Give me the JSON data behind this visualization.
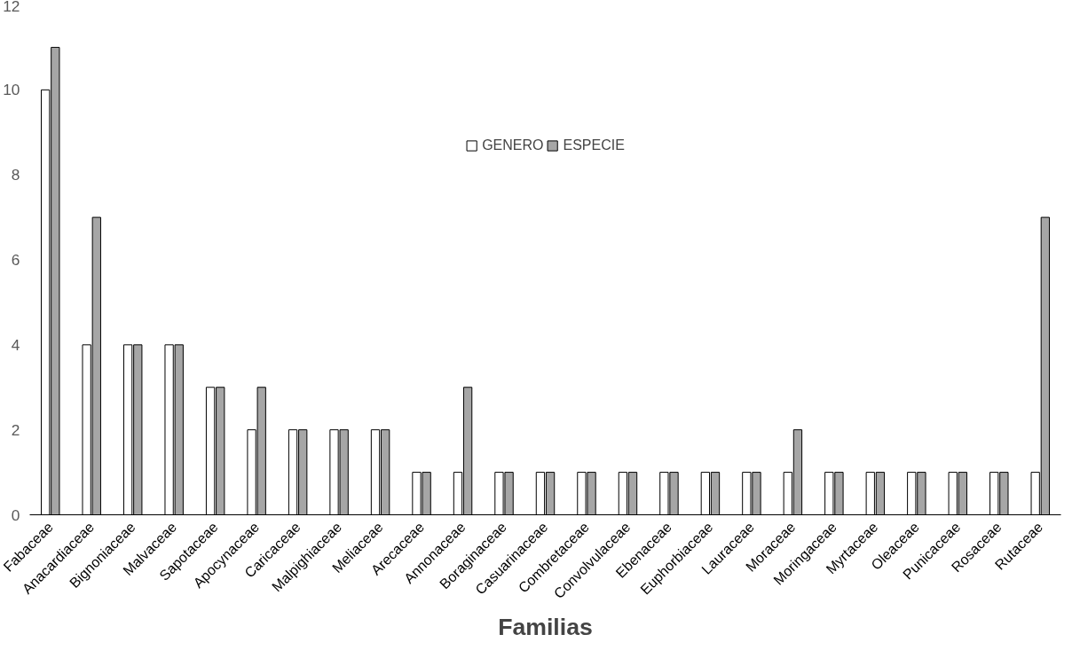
{
  "chart_data": {
    "type": "bar",
    "xlabel": "Familias",
    "categories": [
      "Fabaceae",
      "Anacardiaceae",
      "Bignoniaceae",
      "Malvaceae",
      "Sapotaceae",
      "Apocynaceae",
      "Caricaceae",
      "Malpighiaceae",
      "Meliaceae",
      "Arecaceae",
      "Annonaceae",
      "Boraginaceae",
      "Casuarinaceae",
      "Combretaceae",
      "Convolvulaceae",
      "Ebenaceae",
      "Euphorbiaceae",
      "Lauraceae",
      "Moraceae",
      "Moringaceae",
      "Myrtaceae",
      "Oleaceae",
      "Punicaceae",
      "Rosaceae",
      "Rutaceae"
    ],
    "series": [
      {
        "name": "GENERO",
        "color": "#ffffff",
        "values": [
          10,
          4,
          4,
          4,
          3,
          2,
          2,
          2,
          2,
          1,
          1,
          1,
          1,
          1,
          1,
          1,
          1,
          1,
          1,
          1,
          1,
          1,
          1,
          1,
          1
        ]
      },
      {
        "name": "ESPECIE",
        "color": "#a6a6a6",
        "values": [
          11,
          7,
          4,
          4,
          3,
          3,
          2,
          2,
          2,
          1,
          3,
          1,
          1,
          1,
          1,
          1,
          1,
          1,
          2,
          1,
          1,
          1,
          1,
          1,
          7
        ]
      }
    ],
    "ylim": [
      0,
      12
    ],
    "yticks": [
      0,
      2,
      4,
      6,
      8,
      10,
      12
    ],
    "grid": false,
    "legend": "top"
  }
}
